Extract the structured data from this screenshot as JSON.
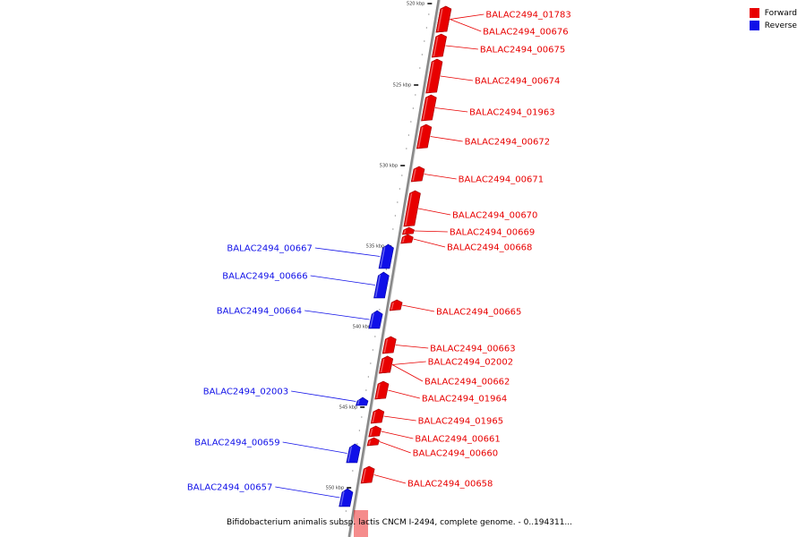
{
  "caption": "Bifidobacterium animalis subsp. lactis CNCM I-2494, complete genome. - 0..194311...",
  "legend": [
    {
      "label": "Forward",
      "color": "#e80000"
    },
    {
      "label": "Reverse",
      "color": "#1010e8"
    }
  ],
  "colors": {
    "forward": "#e80000",
    "reverse": "#1010e8",
    "backbone": "#888888"
  },
  "ticks": [
    {
      "label": "520 kbp",
      "kbp": 520
    },
    {
      "label": "525 kbp",
      "kbp": 525
    },
    {
      "label": "530 kbp",
      "kbp": 530
    },
    {
      "label": "535 kbp",
      "kbp": 535
    },
    {
      "label": "540 kbp",
      "kbp": 540
    },
    {
      "label": "545 kbp",
      "kbp": 545
    },
    {
      "label": "550 kbp",
      "kbp": 550
    }
  ],
  "genes": [
    {
      "id": "BALAC2494_01783",
      "strand": "forward"
    },
    {
      "id": "BALAC2494_00676",
      "strand": "forward"
    },
    {
      "id": "BALAC2494_00675",
      "strand": "forward"
    },
    {
      "id": "BALAC2494_00674",
      "strand": "forward"
    },
    {
      "id": "BALAC2494_01963",
      "strand": "forward"
    },
    {
      "id": "BALAC2494_00672",
      "strand": "forward"
    },
    {
      "id": "BALAC2494_00671",
      "strand": "forward"
    },
    {
      "id": "BALAC2494_00670",
      "strand": "forward"
    },
    {
      "id": "BALAC2494_00669",
      "strand": "forward"
    },
    {
      "id": "BALAC2494_00668",
      "strand": "forward"
    },
    {
      "id": "BALAC2494_00667",
      "strand": "reverse"
    },
    {
      "id": "BALAC2494_00666",
      "strand": "reverse"
    },
    {
      "id": "BALAC2494_00665",
      "strand": "forward"
    },
    {
      "id": "BALAC2494_00664",
      "strand": "reverse"
    },
    {
      "id": "BALAC2494_00663",
      "strand": "forward"
    },
    {
      "id": "BALAC2494_02002",
      "strand": "forward"
    },
    {
      "id": "BALAC2494_00662",
      "strand": "forward"
    },
    {
      "id": "BALAC2494_01964",
      "strand": "forward"
    },
    {
      "id": "BALAC2494_02003",
      "strand": "reverse"
    },
    {
      "id": "BALAC2494_01965",
      "strand": "forward"
    },
    {
      "id": "BALAC2494_00661",
      "strand": "forward"
    },
    {
      "id": "BALAC2494_00660",
      "strand": "forward"
    },
    {
      "id": "BALAC2494_00659",
      "strand": "reverse"
    },
    {
      "id": "BALAC2494_00658",
      "strand": "forward"
    },
    {
      "id": "BALAC2494_00657",
      "strand": "reverse"
    }
  ]
}
